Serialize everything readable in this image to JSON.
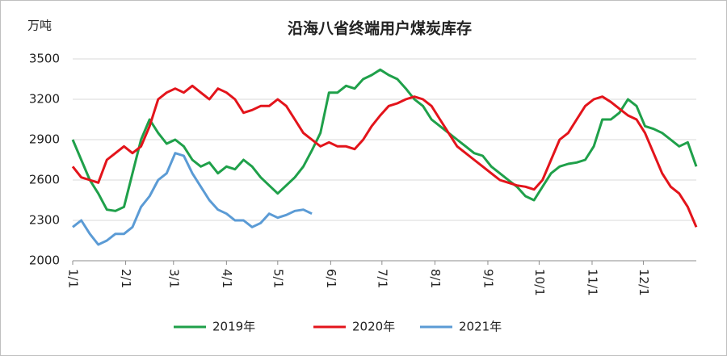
{
  "chart_data": {
    "type": "line",
    "title": "沿海八省终端用户煤炭库存",
    "y_label": "万吨",
    "x": [
      0,
      5,
      10,
      15,
      20,
      25,
      30,
      35,
      40,
      45,
      50,
      55,
      60,
      65,
      70,
      75,
      80,
      85,
      90,
      95,
      100,
      105,
      110,
      115,
      120,
      125,
      130,
      135,
      140,
      145,
      150,
      155,
      160,
      165,
      170,
      175,
      180,
      185,
      190,
      195,
      200,
      205,
      210,
      215,
      220,
      225,
      230,
      235,
      240,
      245,
      250,
      255,
      260,
      265,
      270,
      275,
      280,
      285,
      290,
      295,
      300,
      305,
      310,
      315,
      320,
      325,
      330,
      335,
      340,
      345,
      350,
      355,
      360,
      365
    ],
    "xlim": [
      0,
      365
    ],
    "xticks": [
      {
        "value": 0,
        "label": "1/1"
      },
      {
        "value": 31,
        "label": "2/1"
      },
      {
        "value": 59,
        "label": "3/1"
      },
      {
        "value": 90,
        "label": "4/1"
      },
      {
        "value": 120,
        "label": "5/1"
      },
      {
        "value": 151,
        "label": "6/1"
      },
      {
        "value": 181,
        "label": "7/1"
      },
      {
        "value": 212,
        "label": "8/1"
      },
      {
        "value": 243,
        "label": "9/1"
      },
      {
        "value": 273,
        "label": "10/1"
      },
      {
        "value": 304,
        "label": "11/1"
      },
      {
        "value": 334,
        "label": "12/1"
      }
    ],
    "ylim": [
      2000,
      3500
    ],
    "yticks": [
      2000,
      2300,
      2600,
      2900,
      3200,
      3500
    ],
    "grid": true,
    "series": [
      {
        "name": "2019年",
        "color": "#1fa04a",
        "values": [
          2900,
          2750,
          2600,
          2500,
          2380,
          2370,
          2400,
          2650,
          2900,
          3050,
          2950,
          2870,
          2900,
          2850,
          2750,
          2700,
          2730,
          2650,
          2700,
          2680,
          2750,
          2700,
          2620,
          2560,
          2500,
          2560,
          2620,
          2700,
          2820,
          2950,
          3250,
          3250,
          3300,
          3280,
          3350,
          3380,
          3420,
          3380,
          3350,
          3280,
          3200,
          3150,
          3050,
          3000,
          2950,
          2900,
          2850,
          2800,
          2780,
          2700,
          2650,
          2600,
          2550,
          2480,
          2450,
          2550,
          2650,
          2700,
          2720,
          2730,
          2750,
          2850,
          3050,
          3050,
          3100,
          3200,
          3150,
          3000,
          2980,
          2950,
          2900,
          2850,
          2880,
          2700
        ]
      },
      {
        "name": "2020年",
        "color": "#e3141b",
        "values": [
          2700,
          2620,
          2600,
          2580,
          2750,
          2800,
          2850,
          2800,
          2850,
          3000,
          3200,
          3250,
          3280,
          3250,
          3300,
          3250,
          3200,
          3280,
          3250,
          3200,
          3100,
          3120,
          3150,
          3150,
          3200,
          3150,
          3050,
          2950,
          2900,
          2850,
          2880,
          2850,
          2850,
          2830,
          2900,
          3000,
          3080,
          3150,
          3170,
          3200,
          3220,
          3200,
          3150,
          3050,
          2950,
          2850,
          2800,
          2750,
          2700,
          2650,
          2600,
          2580,
          2560,
          2550,
          2530,
          2600,
          2750,
          2900,
          2950,
          3050,
          3150,
          3200,
          3220,
          3180,
          3130,
          3080,
          3050,
          2950,
          2800,
          2650,
          2550,
          2500,
          2400,
          2250
        ]
      },
      {
        "name": "2021年",
        "color": "#5b9bd5",
        "values": [
          2250,
          2300,
          2200,
          2120,
          2150,
          2200,
          2200,
          2250,
          2400,
          2480,
          2600,
          2650,
          2800,
          2780,
          2650,
          2550,
          2450,
          2380,
          2350,
          2300,
          2300,
          2250,
          2280,
          2350,
          2320,
          2340,
          2370,
          2380,
          2350,
          null,
          null,
          null,
          null,
          null,
          null,
          null,
          null,
          null,
          null,
          null,
          null,
          null,
          null,
          null,
          null,
          null,
          null,
          null,
          null,
          null,
          null,
          null,
          null,
          null,
          null,
          null,
          null,
          null,
          null,
          null,
          null,
          null,
          null,
          null,
          null,
          null,
          null,
          null,
          null,
          null,
          null,
          null,
          null,
          null
        ]
      }
    ]
  }
}
